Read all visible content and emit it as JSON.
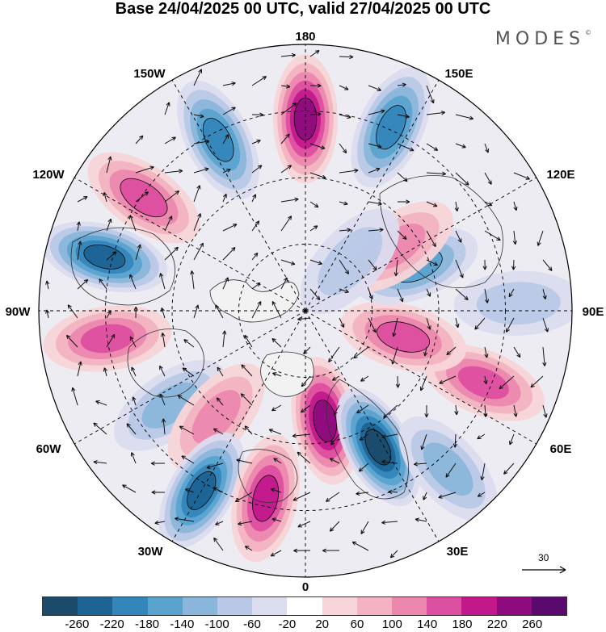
{
  "title": "Base 24/04/2025 00 UTC, valid 27/04/2025 00 UTC",
  "logo": "MODES",
  "logo_mark": "©",
  "longitude_labels": {
    "top": "180",
    "bottom": "0",
    "left": "90W",
    "right": "90E",
    "ul1": "150W",
    "ul2": "120W",
    "ur1": "150E",
    "ur2": "120E",
    "ll1": "60W",
    "ll2": "30W",
    "lr1": "60E",
    "lr2": "30E"
  },
  "reference_vector": "30",
  "colorbar": {
    "colors": [
      "#1b4a6b",
      "#1d6494",
      "#3486ba",
      "#5aa3cf",
      "#8ab6db",
      "#b8c8e6",
      "#dcdcef",
      "#ffffff",
      "#f8d5d8",
      "#f3b3c2",
      "#ec88ae",
      "#dd4fa0",
      "#c2188c",
      "#8e0b7d",
      "#5a0a6e"
    ],
    "tick_labels": [
      "-260",
      "-220",
      "-180",
      "-140",
      "-100",
      "-60",
      "-20",
      "20",
      "60",
      "100",
      "140",
      "180",
      "220",
      "260"
    ]
  },
  "anomaly_cells": [
    {
      "lon": 180,
      "r": 0.72,
      "value": 240
    },
    {
      "lon": 155,
      "r": 0.76,
      "value": -200
    },
    {
      "lon": 207,
      "r": 0.72,
      "value": -180
    },
    {
      "lon": 235,
      "r": 0.74,
      "value": 160
    },
    {
      "lon": 255,
      "r": 0.78,
      "value": -220
    },
    {
      "lon": 278,
      "r": 0.75,
      "value": 140
    },
    {
      "lon": 305,
      "r": 0.62,
      "value": -120
    },
    {
      "lon": 320,
      "r": 0.52,
      "value": 120
    },
    {
      "lon": 330,
      "r": 0.78,
      "value": -220
    },
    {
      "lon": 348,
      "r": 0.72,
      "value": 200
    },
    {
      "lon": 10,
      "r": 0.42,
      "value": 220
    },
    {
      "lon": 28,
      "r": 0.58,
      "value": -260
    },
    {
      "lon": 42,
      "r": 0.8,
      "value": -100
    },
    {
      "lon": 68,
      "r": 0.72,
      "value": 150
    },
    {
      "lon": 92,
      "r": 0.8,
      "value": -80
    },
    {
      "lon": 75,
      "r": 0.38,
      "value": 160
    },
    {
      "lon": 112,
      "r": 0.45,
      "value": -160
    },
    {
      "lon": 125,
      "r": 0.42,
      "value": 120
    },
    {
      "lon": 138,
      "r": 0.25,
      "value": -60
    }
  ]
}
